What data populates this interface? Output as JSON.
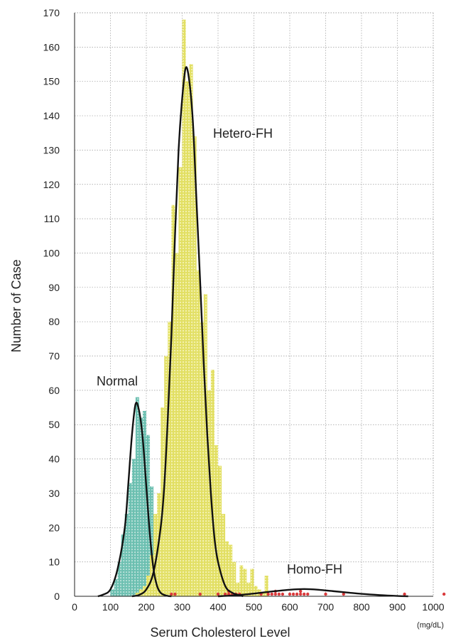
{
  "chart_data": {
    "type": "bar",
    "title": "",
    "xlabel": "Serum Cholesterol Level",
    "ylabel": "Number of Case",
    "x_unit": "(mg/dL)",
    "xlim": [
      0,
      1000
    ],
    "ylim": [
      0,
      170
    ],
    "xticks": [
      0,
      100,
      200,
      300,
      400,
      500,
      600,
      700,
      800,
      900,
      1000
    ],
    "yticks": [
      0,
      10,
      20,
      30,
      40,
      50,
      60,
      70,
      80,
      90,
      100,
      110,
      120,
      130,
      140,
      150,
      160,
      170
    ],
    "grid": true,
    "bin_width": 10,
    "colors": {
      "normal": "#6bbfb0",
      "hetero": "#e2df63",
      "homo": "#d9393b",
      "curve": "#111111"
    },
    "annotations": [
      {
        "text": "Normal",
        "x": 130,
        "y": 62,
        "series": "normal"
      },
      {
        "text": "Hetero-FH",
        "x": 390,
        "y": 136,
        "series": "hetero"
      },
      {
        "text": "Homo-FH",
        "x": 600,
        "y": 8,
        "series": "homo"
      }
    ],
    "series": [
      {
        "key": "normal",
        "kind": "histogram",
        "x": [
          100,
          110,
          120,
          130,
          140,
          150,
          160,
          170,
          180,
          190,
          200,
          210,
          220
        ],
        "values": [
          2,
          5,
          10,
          18,
          24,
          33,
          40,
          58,
          52,
          54,
          47,
          32,
          16
        ]
      },
      {
        "key": "hetero",
        "kind": "histogram",
        "x": [
          170,
          180,
          190,
          200,
          210,
          220,
          230,
          240,
          250,
          260,
          270,
          280,
          290,
          300,
          310,
          320,
          330,
          340,
          350,
          360,
          370,
          380,
          390,
          400,
          410,
          420,
          430,
          440,
          450,
          460,
          470,
          480,
          490,
          500,
          510,
          520,
          530
        ],
        "values": [
          1,
          2,
          3,
          6,
          12,
          24,
          30,
          55,
          70,
          80,
          114,
          100,
          125,
          168,
          150,
          155,
          134,
          95,
          80,
          88,
          60,
          66,
          44,
          38,
          24,
          16,
          15,
          10,
          4,
          9,
          8,
          4,
          8,
          3,
          2,
          1,
          6
        ]
      },
      {
        "key": "homo",
        "kind": "points",
        "x": [
          270,
          280,
          350,
          400,
          420,
          430,
          440,
          450,
          460,
          520,
          540,
          550,
          560,
          570,
          580,
          600,
          610,
          620,
          630,
          640,
          650,
          700,
          750,
          920,
          1030
        ],
        "values": [
          1,
          1,
          1,
          1,
          1,
          2,
          1,
          1,
          1,
          1,
          1,
          1,
          2,
          1,
          1,
          1,
          1,
          1,
          2,
          1,
          1,
          1,
          1,
          1,
          1
        ]
      },
      {
        "key": "normal_curve",
        "kind": "curve",
        "x": [
          65,
          80,
          100,
          120,
          140,
          150,
          160,
          170,
          180,
          190,
          200,
          210,
          220,
          230,
          240,
          250,
          260,
          270
        ],
        "values": [
          0,
          0.5,
          2,
          8,
          20,
          33,
          47,
          56,
          54,
          46,
          32,
          18,
          8,
          3,
          1,
          0.4,
          0.1,
          0
        ]
      },
      {
        "key": "hetero_curve",
        "kind": "curve",
        "x": [
          160,
          180,
          200,
          220,
          240,
          250,
          260,
          270,
          280,
          290,
          300,
          310,
          320,
          330,
          340,
          350,
          360,
          370,
          380,
          390,
          400,
          420,
          440,
          460,
          470
        ],
        "values": [
          0,
          0.4,
          2,
          7,
          20,
          32,
          52,
          76,
          105,
          130,
          145,
          154,
          150,
          138,
          115,
          92,
          68,
          47,
          30,
          17,
          10,
          3,
          1,
          0.3,
          0
        ]
      },
      {
        "key": "homo_curve",
        "kind": "curve",
        "x": [
          400,
          450,
          500,
          550,
          600,
          640,
          680,
          720,
          760,
          800,
          850,
          900,
          930
        ],
        "values": [
          0,
          0.3,
          0.8,
          1.4,
          1.9,
          2.1,
          1.9,
          1.5,
          1.1,
          0.7,
          0.35,
          0.1,
          0
        ]
      }
    ]
  }
}
